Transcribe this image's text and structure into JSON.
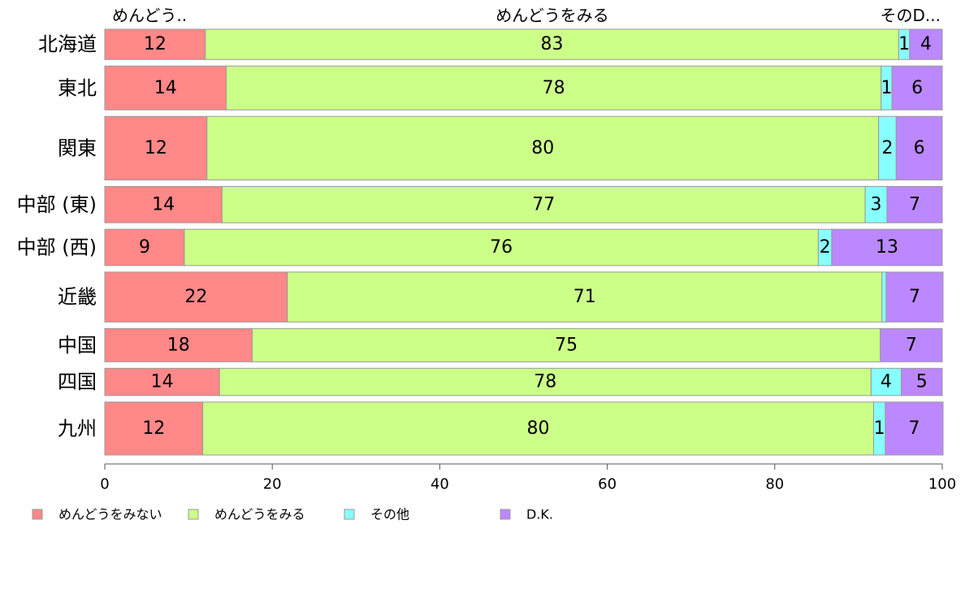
{
  "chart_data": {
    "type": "bar",
    "orientation": "horizontal",
    "stacked": true,
    "categories": [
      "北海道",
      "東北",
      "関東",
      "中部 (東)",
      "中部 (西)",
      "近畿",
      "中国",
      "四国",
      "九州"
    ],
    "row_weights": [
      1.0,
      1.45,
      2.1,
      1.2,
      1.2,
      1.65,
      1.1,
      0.9,
      1.75
    ],
    "series": [
      {
        "name": "めんどうをみない",
        "color": "#ff8888",
        "values": [
          12,
          14.5,
          12.2,
          14,
          9.5,
          21.8,
          17.6,
          13.7,
          11.7
        ]
      },
      {
        "name": "めんどうをみる",
        "color": "#ccff88",
        "values": [
          82.8,
          78.2,
          80.2,
          76.8,
          75.7,
          71,
          75,
          77.8,
          80.1
        ]
      },
      {
        "name": "その他",
        "color": "#88ffff",
        "values": [
          1.3,
          1.3,
          2.1,
          2.6,
          1.6,
          0.5,
          0,
          3.6,
          1.4
        ]
      },
      {
        "name": "D.K.",
        "color": "#bb88ff",
        "values": [
          3.9,
          6,
          5.5,
          6.6,
          13.2,
          6.8,
          7.4,
          4.9,
          6.9
        ]
      }
    ],
    "labels": [
      [
        "12",
        "83",
        "1",
        "4"
      ],
      [
        "14",
        "78",
        "1",
        "6"
      ],
      [
        "12",
        "80",
        "2",
        "6"
      ],
      [
        "14",
        "77",
        "3",
        "7"
      ],
      [
        "9",
        "76",
        "2",
        "13"
      ],
      [
        "22",
        "71",
        "",
        "7"
      ],
      [
        "18",
        "75",
        "",
        "7"
      ],
      [
        "14",
        "78",
        "4",
        "5"
      ],
      [
        "12",
        "80",
        "1",
        "7"
      ]
    ],
    "top_labels": [
      "めんどう..",
      "めんどうをみる",
      "そのD..."
    ],
    "xlim": [
      0,
      100
    ],
    "xticks": [
      0,
      20,
      40,
      60,
      80,
      100
    ],
    "grid": false,
    "legend_position": "bottom",
    "xlabel": "",
    "ylabel": ""
  }
}
